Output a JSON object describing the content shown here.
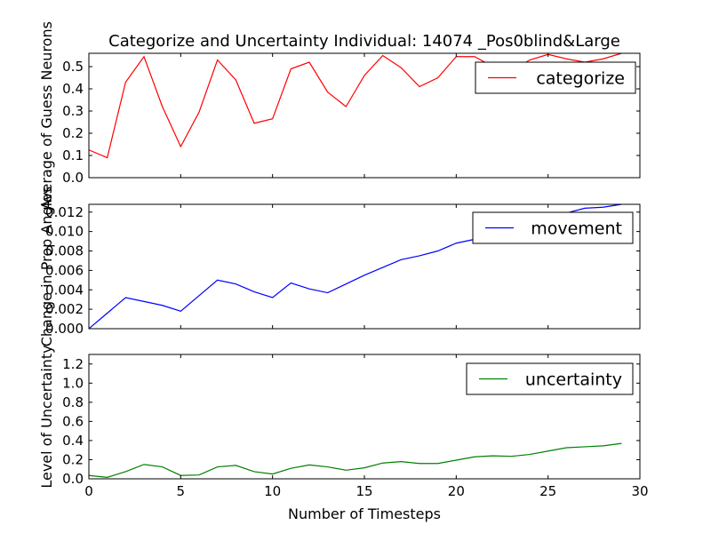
{
  "chart_data": {
    "type": "line",
    "title": "Categorize and Uncertainty Individual: 14074 _Pos0blind&Large",
    "xlabel": "Number of Timesteps",
    "xlim": [
      0,
      30
    ],
    "xticks": [
      "0",
      "5",
      "10",
      "15",
      "20",
      "25",
      "30"
    ],
    "x": [
      0,
      1,
      2,
      3,
      4,
      5,
      6,
      7,
      8,
      9,
      10,
      11,
      12,
      13,
      14,
      15,
      16,
      17,
      18,
      19,
      20,
      21,
      22,
      23,
      24,
      25,
      26,
      27,
      28,
      29
    ],
    "panels": [
      {
        "ylabel": "Average of Guess Neurons",
        "ylim": [
          0,
          0.56
        ],
        "yticks": [
          "0.0",
          "0.1",
          "0.2",
          "0.3",
          "0.4",
          "0.5"
        ],
        "legend_position": "top-right",
        "series": [
          {
            "name": "categorize",
            "color": "#ff0000",
            "values": [
              0.125,
              0.09,
              0.43,
              0.545,
              0.32,
              0.14,
              0.295,
              0.53,
              0.44,
              0.245,
              0.265,
              0.49,
              0.52,
              0.385,
              0.32,
              0.46,
              0.55,
              0.495,
              0.41,
              0.45,
              0.545,
              0.545,
              0.5,
              0.48,
              0.53,
              0.555,
              0.535,
              0.52,
              0.535,
              0.56
            ]
          }
        ]
      },
      {
        "ylabel": "Change in Prop Angles",
        "ylim": [
          0,
          0.0128
        ],
        "yticks": [
          "0.000",
          "0.002",
          "0.004",
          "0.006",
          "0.008",
          "0.010",
          "0.012"
        ],
        "legend_position": "top-right",
        "series": [
          {
            "name": "movement",
            "color": "#0000ff",
            "values": [
              0.0,
              0.0016,
              0.0032,
              0.0028,
              0.0024,
              0.0018,
              0.0034,
              0.005,
              0.0046,
              0.0038,
              0.0032,
              0.0047,
              0.0041,
              0.0037,
              0.0046,
              0.0055,
              0.0063,
              0.0071,
              0.0075,
              0.008,
              0.0088,
              0.0092,
              0.0098,
              0.0104,
              0.011,
              0.0115,
              0.0119,
              0.0124,
              0.0125,
              0.0128
            ]
          }
        ]
      },
      {
        "ylabel": "Level of Uncertainty",
        "ylim": [
          0,
          1.3
        ],
        "yticks": [
          "0.0",
          "0.2",
          "0.4",
          "0.6",
          "0.8",
          "1.0",
          "1.2"
        ],
        "legend_position": "top-right",
        "series": [
          {
            "name": "uncertainty",
            "color": "#008000",
            "values": [
              0.035,
              0.015,
              0.075,
              0.15,
              0.125,
              0.035,
              0.04,
              0.125,
              0.14,
              0.075,
              0.05,
              0.11,
              0.145,
              0.125,
              0.09,
              0.115,
              0.165,
              0.18,
              0.16,
              0.16,
              0.195,
              0.23,
              0.24,
              0.235,
              0.255,
              0.29,
              0.325,
              0.335,
              0.345,
              0.37
            ]
          }
        ]
      }
    ]
  }
}
